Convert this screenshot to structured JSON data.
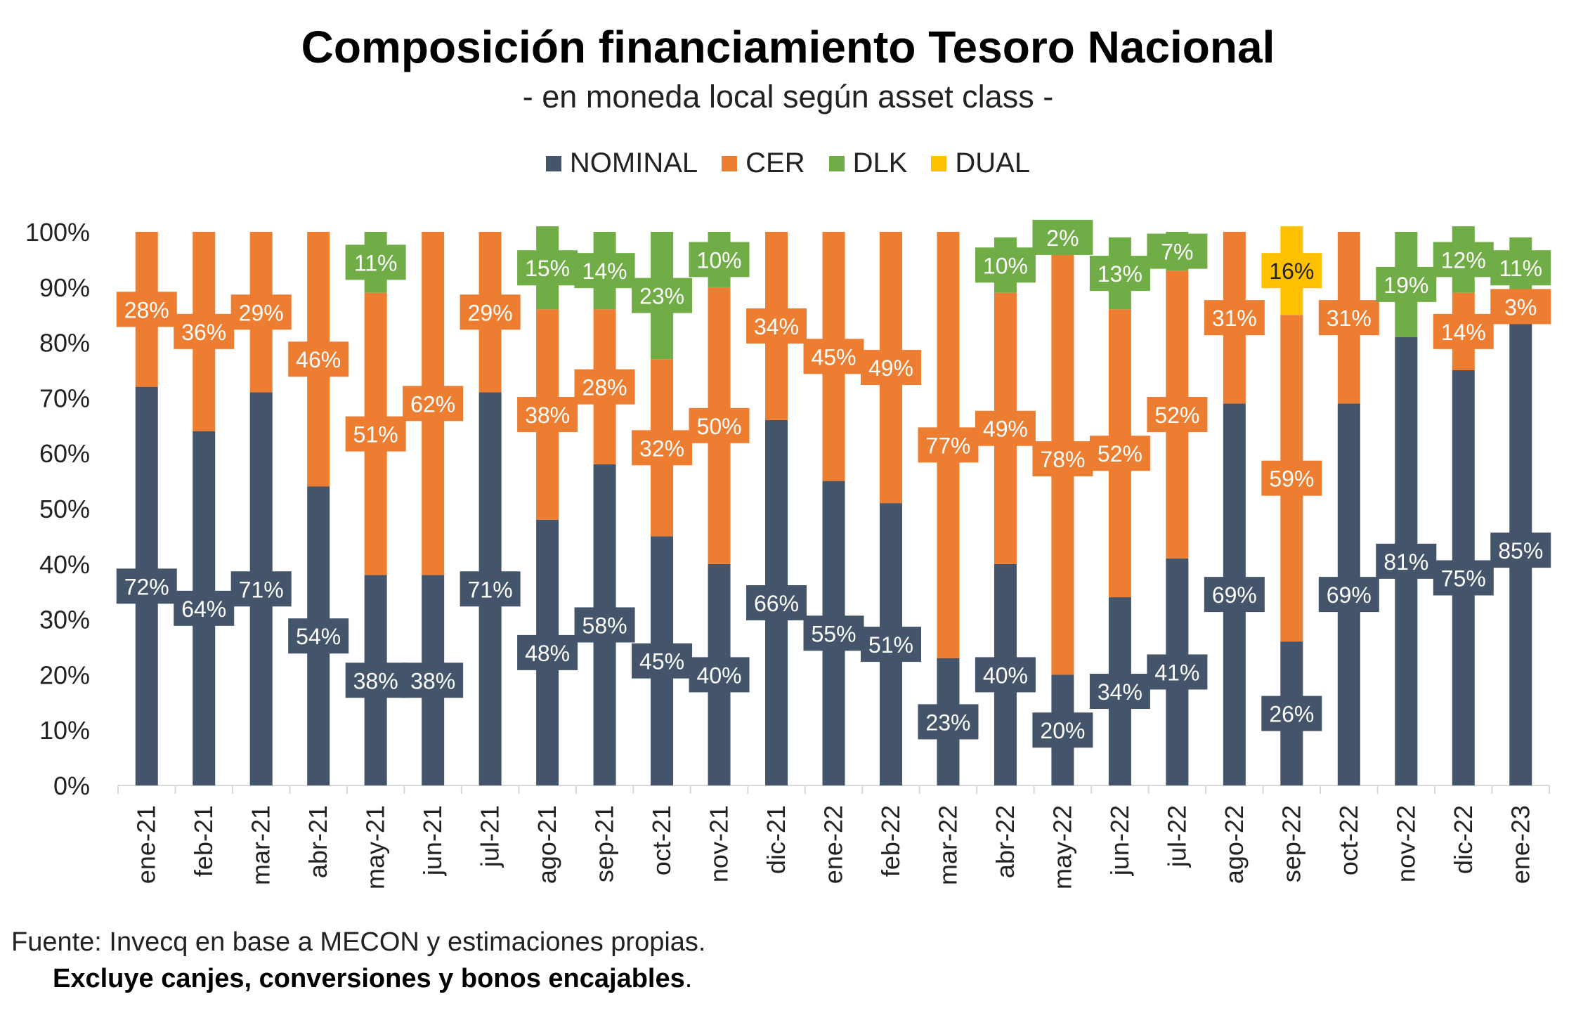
{
  "chart_data": {
    "type": "bar",
    "stacked": true,
    "title": "Composición financiamiento Tesoro Nacional",
    "subtitle": "- en moneda local según asset class -",
    "xlabel": "",
    "ylabel": "",
    "ylim": [
      0,
      100
    ],
    "yticks": [
      "0%",
      "10%",
      "20%",
      "30%",
      "40%",
      "50%",
      "60%",
      "70%",
      "80%",
      "90%",
      "100%"
    ],
    "categories": [
      "ene-21",
      "feb-21",
      "mar-21",
      "abr-21",
      "may-21",
      "jun-21",
      "jul-21",
      "ago-21",
      "sep-21",
      "oct-21",
      "nov-21",
      "dic-21",
      "ene-22",
      "feb-22",
      "mar-22",
      "abr-22",
      "may-22",
      "jun-22",
      "jul-22",
      "ago-22",
      "sep-22",
      "oct-22",
      "nov-22",
      "dic-22",
      "ene-23"
    ],
    "legend_position": "top",
    "series": [
      {
        "name": "NOMINAL",
        "color": "#44546A",
        "values": [
          72,
          64,
          71,
          54,
          38,
          38,
          71,
          48,
          58,
          45,
          40,
          66,
          55,
          51,
          23,
          40,
          20,
          34,
          41,
          69,
          26,
          69,
          81,
          75,
          85
        ]
      },
      {
        "name": "CER",
        "color": "#ED7D31",
        "values": [
          28,
          36,
          29,
          46,
          51,
          62,
          29,
          38,
          28,
          32,
          50,
          34,
          45,
          49,
          77,
          49,
          78,
          52,
          52,
          31,
          59,
          31,
          0,
          14,
          3
        ]
      },
      {
        "name": "DLK",
        "color": "#70AD47",
        "values": [
          0,
          0,
          0,
          0,
          11,
          0,
          0,
          15,
          14,
          23,
          10,
          0,
          0,
          0,
          0,
          10,
          2,
          13,
          7,
          0,
          0,
          0,
          19,
          12,
          11
        ]
      },
      {
        "name": "DUAL",
        "color": "#FFC000",
        "values": [
          0,
          0,
          0,
          0,
          0,
          0,
          0,
          0,
          0,
          0,
          0,
          0,
          0,
          0,
          0,
          0,
          0,
          0,
          0,
          0,
          16,
          0,
          0,
          0,
          0
        ]
      }
    ],
    "data_labels": [
      [
        "72%",
        "64%",
        "71%",
        "54%",
        "38%",
        "38%",
        "71%",
        "48%",
        "58%",
        "45%",
        "40%",
        "66%",
        "55%",
        "51%",
        "23%",
        "40%",
        "20%",
        "34%",
        "41%",
        "69%",
        "26%",
        "69%",
        "81%",
        "75%",
        "85%"
      ],
      [
        "28%",
        "36%",
        "29%",
        "46%",
        "51%",
        "62%",
        "29%",
        "38%",
        "28%",
        "32%",
        "50%",
        "34%",
        "45%",
        "49%",
        "77%",
        "49%",
        "78%",
        "52%",
        "52%",
        "31%",
        "59%",
        "31%",
        "",
        "14%",
        "3%"
      ],
      [
        "",
        "",
        "",
        "",
        "11%",
        "",
        "",
        "15%",
        "14%",
        "23%",
        "10%",
        "",
        "",
        "",
        "",
        "10%",
        "2%",
        "13%",
        "7%",
        "",
        "",
        "",
        "19%",
        "12%",
        "11%"
      ],
      [
        "",
        "",
        "",
        "",
        "",
        "",
        "",
        "",
        "",
        "",
        "",
        "",
        "",
        "",
        "",
        "",
        "",
        "",
        "",
        "",
        "16%",
        "",
        "",
        "",
        ""
      ]
    ]
  },
  "source": "Fuente: Invecq en base a MECON y estimaciones propias.",
  "note": "Excluye canjes, conversiones y bonos encajables",
  "note_tail": "."
}
